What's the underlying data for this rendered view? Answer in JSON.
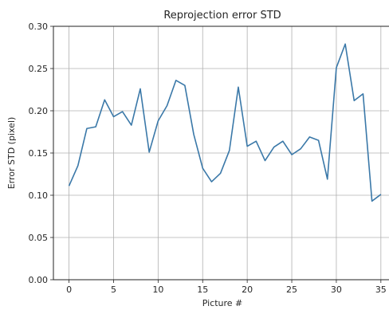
{
  "chart_data": {
    "type": "line",
    "title": "Reprojection error STD",
    "xlabel": "Picture #",
    "ylabel": "Error STD (pixel)",
    "xlim": [
      -1.75,
      36
    ],
    "ylim": [
      0,
      0.3
    ],
    "xticks": [
      0,
      5,
      10,
      15,
      20,
      25,
      30,
      35
    ],
    "xtick_labels": [
      "0",
      "5",
      "10",
      "15",
      "20",
      "25",
      "30",
      "35"
    ],
    "yticks": [
      0.0,
      0.05,
      0.1,
      0.15,
      0.2,
      0.25,
      0.3
    ],
    "ytick_labels": [
      "0.00",
      "0.05",
      "0.10",
      "0.15",
      "0.20",
      "0.25",
      "0.30"
    ],
    "grid": true,
    "line_color": "#3a78a8",
    "series": [
      {
        "x": [
          0,
          1,
          2,
          3,
          4,
          5,
          6,
          7,
          8,
          9,
          10,
          11,
          12,
          13,
          14,
          15,
          16,
          17,
          18,
          19,
          20,
          21,
          22,
          23,
          24,
          25,
          26,
          27,
          28,
          29,
          30,
          31,
          32,
          33,
          34,
          35
        ],
        "values": [
          0.111,
          0.135,
          0.179,
          0.181,
          0.213,
          0.193,
          0.199,
          0.183,
          0.226,
          0.151,
          0.188,
          0.206,
          0.236,
          0.23,
          0.172,
          0.132,
          0.116,
          0.126,
          0.153,
          0.228,
          0.158,
          0.164,
          0.141,
          0.157,
          0.164,
          0.148,
          0.155,
          0.169,
          0.165,
          0.119,
          0.251,
          0.279,
          0.212,
          0.22,
          0.093,
          0.101
        ]
      }
    ]
  }
}
